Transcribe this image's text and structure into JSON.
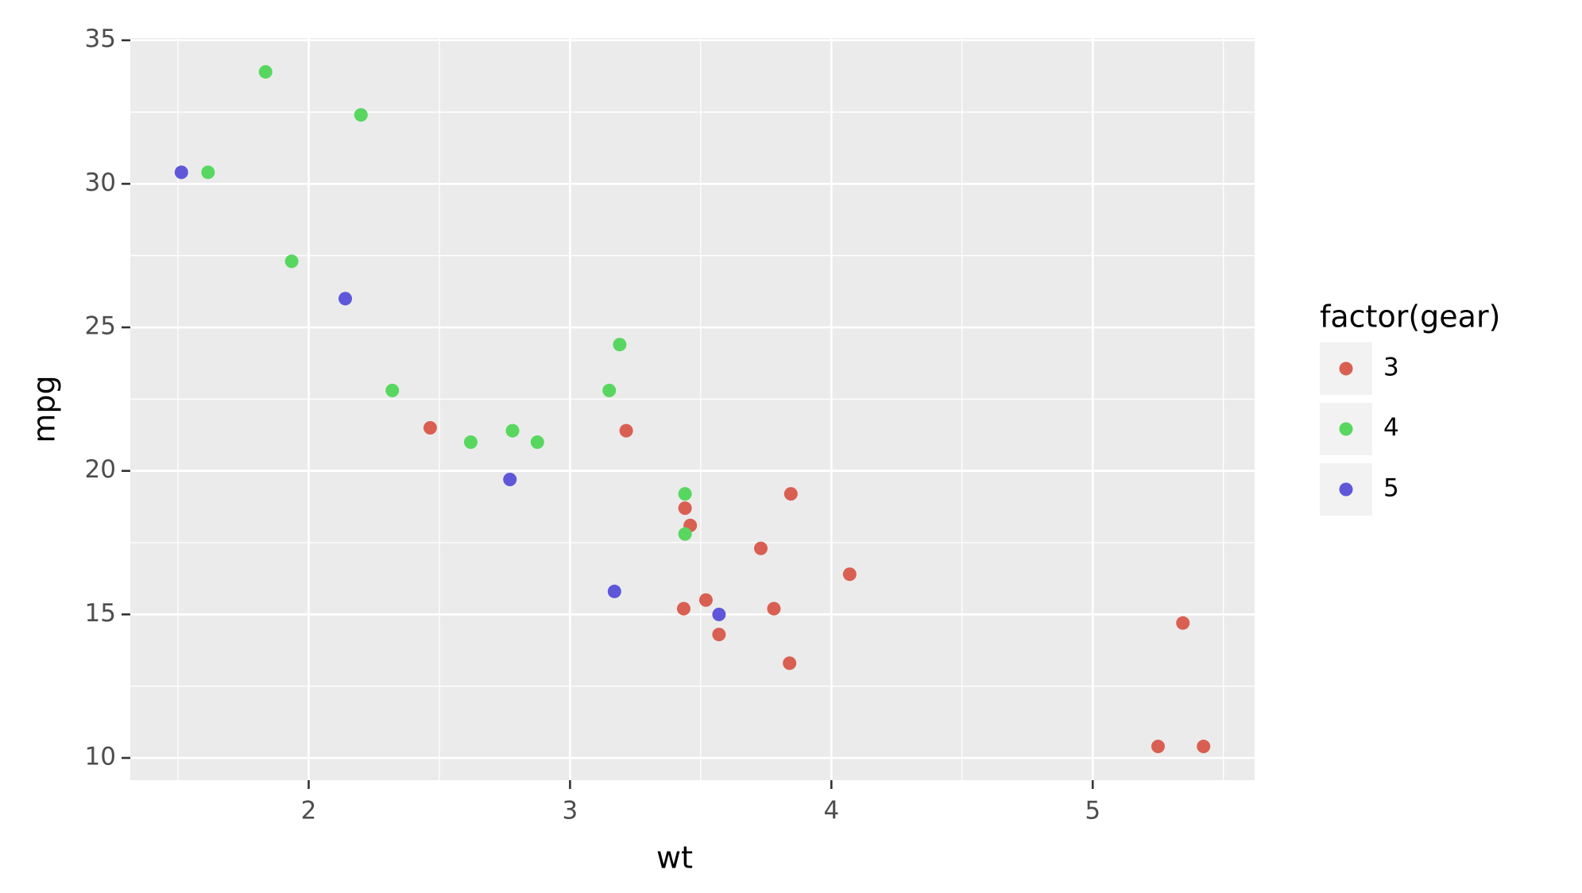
{
  "chart_data": {
    "type": "scatter",
    "x_label": "wt",
    "y_label": "mpg",
    "legend_title": "factor(gear)",
    "legend_position": "right",
    "grid": true,
    "xlim": [
      1.3175,
      5.6195
    ],
    "ylim": [
      9.225,
      35.075
    ],
    "xticks": [
      2,
      3,
      4,
      5
    ],
    "yticks": [
      10,
      15,
      20,
      25,
      30,
      35
    ],
    "series": [
      {
        "name": "3",
        "color": "#d95f52",
        "x": [
          3.215,
          3.44,
          3.46,
          3.57,
          4.07,
          3.73,
          3.78,
          5.25,
          5.424,
          5.345,
          2.465,
          3.52,
          3.435,
          3.84,
          3.845
        ],
        "values": [
          21.4,
          18.7,
          18.1,
          14.3,
          16.4,
          17.3,
          15.2,
          10.4,
          10.4,
          14.7,
          21.5,
          15.5,
          15.2,
          13.3,
          19.2
        ]
      },
      {
        "name": "4",
        "color": "#57d75f",
        "x": [
          2.62,
          2.875,
          2.32,
          3.19,
          3.15,
          3.44,
          3.44,
          2.2,
          1.615,
          1.835,
          1.935,
          2.78
        ],
        "values": [
          21.0,
          21.0,
          22.8,
          24.4,
          22.8,
          19.2,
          17.8,
          32.4,
          30.4,
          33.9,
          27.3,
          21.4
        ]
      },
      {
        "name": "5",
        "color": "#5f57d9",
        "x": [
          2.14,
          1.513,
          3.17,
          2.77,
          3.57
        ],
        "values": [
          26.0,
          30.4,
          15.8,
          19.7,
          15.0
        ]
      }
    ]
  }
}
